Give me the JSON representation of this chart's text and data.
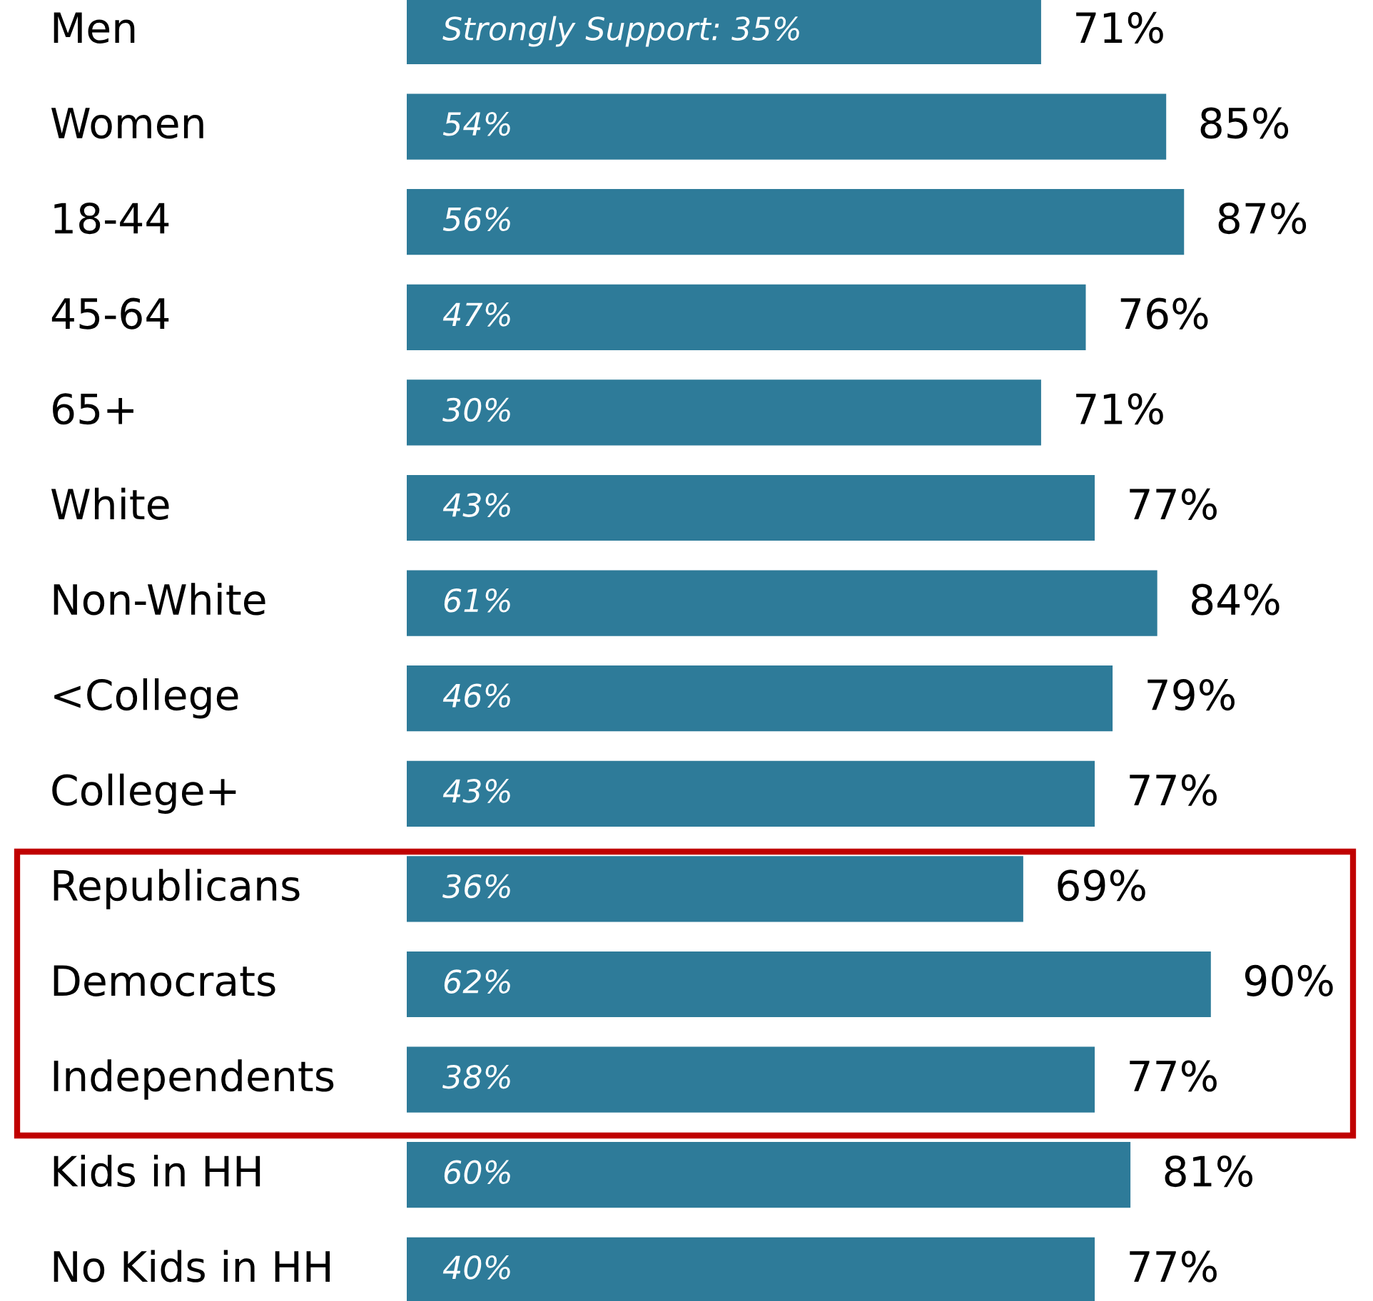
{
  "chart_data": {
    "type": "bar",
    "orientation": "horizontal",
    "categories": [
      "Men",
      "Women",
      "18-44",
      "45-64",
      "65+",
      "White",
      "Non-White",
      "<College",
      "College+",
      "Republicans",
      "Democrats",
      "Independents",
      "Kids in HH",
      "No Kids in HH"
    ],
    "values": [
      71,
      85,
      87,
      76,
      71,
      77,
      84,
      79,
      77,
      69,
      90,
      77,
      81,
      77
    ],
    "value_labels": [
      "71%",
      "85%",
      "87%",
      "76%",
      "71%",
      "77%",
      "84%",
      "79%",
      "77%",
      "69%",
      "90%",
      "77%",
      "81%",
      "77%"
    ],
    "color": "#2e7b99",
    "annotations": [
      "Strongly Support: 35%",
      "54%",
      "56%",
      "47%",
      "30%",
      "43%",
      "61%",
      "46%",
      "43%",
      "36%",
      "62%",
      "38%",
      "60%",
      "40%"
    ],
    "tick_labels": "y"
  }
}
